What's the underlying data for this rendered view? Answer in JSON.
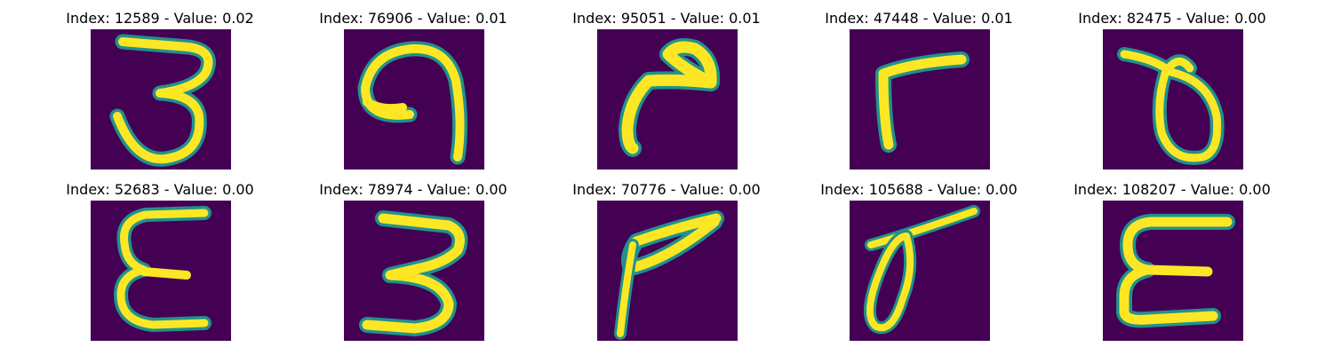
{
  "colors": {
    "background": "#440154",
    "stroke_core": "#fde725",
    "stroke_edge": "#21918c"
  },
  "panels": [
    {
      "title": "Index: 12589 - Value: 0.02",
      "image": "handwritten-glyph-3"
    },
    {
      "title": "Index: 76906 - Value: 0.01",
      "image": "handwritten-glyph-hook"
    },
    {
      "title": "Index: 95051 - Value: 0.01",
      "image": "handwritten-glyph-7-like"
    },
    {
      "title": "Index: 47448 - Value: 0.01",
      "image": "handwritten-glyph-r"
    },
    {
      "title": "Index: 82475 - Value: 0.00",
      "image": "handwritten-glyph-loop"
    },
    {
      "title": "Index: 52683 - Value: 0.00",
      "image": "handwritten-glyph-epsilon"
    },
    {
      "title": "Index: 78974 - Value: 0.00",
      "image": "handwritten-glyph-3"
    },
    {
      "title": "Index: 70776 - Value: 0.00",
      "image": "handwritten-glyph-7-like"
    },
    {
      "title": "Index: 105688 - Value: 0.00",
      "image": "handwritten-glyph-loop"
    },
    {
      "title": "Index: 108207 - Value: 0.00",
      "image": "handwritten-glyph-E"
    }
  ]
}
